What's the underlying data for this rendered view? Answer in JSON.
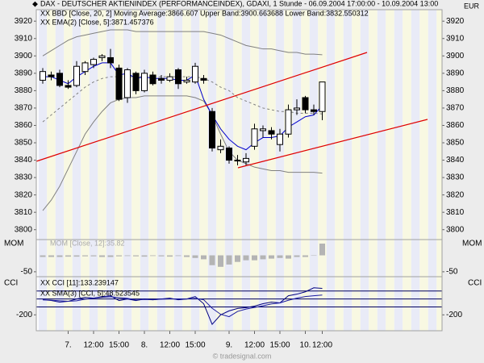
{
  "chart_data": [
    {
      "type": "candlestick",
      "title": "DAX - DEUTSCHER AKTIENINDEX (PERFORMANCEINDEX), GDAXI, 1 Stunde - 06.09.2004 17:00:00 - 10.09.2004 13:00",
      "y_label": "EUR",
      "subtitles": [
        "XX BBD [Close, 20, 2] Moving Average:3866.607 Upper Band:3900.663688 Lower Band:3832.550312",
        "XX EMA(2) [Close, 5]:3871.457376"
      ],
      "categories": [
        null,
        null,
        null,
        "7.",
        null,
        null,
        "12:00",
        null,
        null,
        "15:00",
        null,
        null,
        "8.",
        null,
        null,
        "12:00",
        null,
        null,
        "15:00",
        null,
        null,
        null,
        "9.",
        null,
        null,
        "12:00",
        null,
        null,
        "15:00",
        null,
        null,
        "10.",
        null,
        "12:00"
      ],
      "open": [
        3886,
        3889,
        3890,
        3883,
        3883,
        3891,
        3895,
        3899,
        3899,
        3893,
        3876,
        3890,
        3880,
        3889,
        3887,
        3886,
        3892,
        3885,
        3885,
        3887,
        3868,
        3846,
        3847,
        3840,
        3839,
        3848,
        3857,
        3857,
        3849,
        3855,
        3869,
        3876,
        3869,
        3868
      ],
      "high": [
        3893,
        3891,
        3892,
        3886,
        3897,
        3897,
        3899,
        3901,
        3904,
        3895,
        3893,
        3891,
        3892,
        3891,
        3889,
        3890,
        3893,
        3888,
        3896,
        3889,
        3870,
        3852,
        3848,
        3843,
        3844,
        3861,
        3860,
        3859,
        3858,
        3872,
        3875,
        3877,
        3872,
        3885
      ],
      "low": [
        3884,
        3886,
        3882,
        3881,
        3882,
        3889,
        3893,
        3897,
        3893,
        3874,
        3873,
        3878,
        3879,
        3883,
        3884,
        3885,
        3881,
        3884,
        3884,
        3884,
        3845,
        3844,
        3838,
        3837,
        3837,
        3846,
        3853,
        3852,
        3845,
        3853,
        3866,
        3867,
        3866,
        3863
      ],
      "close": [
        3891,
        3888,
        3883,
        3882,
        3894,
        3896,
        3898,
        3900,
        3896,
        3875,
        3892,
        3880,
        3890,
        3884,
        3886,
        3888,
        3884,
        3886,
        3894,
        3886,
        3847,
        3848,
        3840,
        3840,
        3841,
        3858,
        3858,
        3855,
        3855,
        3869,
        3870,
        3869,
        3868,
        3885
      ],
      "up_color": "#ffffff",
      "down_color": "#000000",
      "series": [
        {
          "color": "#808080",
          "dashed": false,
          "values": [
            3900,
            3903,
            3906,
            3909,
            3911,
            3912,
            3913,
            3914,
            3915,
            3915,
            3915,
            3914,
            3914,
            3914,
            3914,
            3914,
            3914,
            3914,
            3914,
            3914,
            3913,
            3912,
            3910,
            3908,
            3906,
            3905,
            3904,
            3904,
            3903,
            3902,
            3902,
            3901,
            3901,
            3900.66
          ]
        },
        {
          "color": "#808080",
          "dashed": true,
          "values": [
            3862,
            3866,
            3870,
            3874,
            3878,
            3882,
            3885,
            3887,
            3888,
            3888,
            3888,
            3888,
            3888,
            3888,
            3888,
            3888,
            3888,
            3888,
            3888,
            3887,
            3885,
            3882,
            3880,
            3876,
            3874,
            3872,
            3870,
            3869,
            3868,
            3868,
            3867,
            3867,
            3867,
            3866.61
          ]
        },
        {
          "color": "#808080",
          "dashed": false,
          "values": [
            3811,
            3817,
            3825,
            3835,
            3845,
            3855,
            3862,
            3868,
            3873,
            3875,
            3876,
            3876,
            3877,
            3877,
            3877,
            3877,
            3877,
            3877,
            3876,
            3874,
            3866,
            3855,
            3845,
            3840,
            3838,
            3836,
            3835,
            3834,
            3834,
            3833,
            3833,
            3833,
            3833,
            3832.55
          ]
        },
        {
          "color": "#0000cc",
          "dashed": false,
          "values": [
            3888,
            3888,
            3886,
            3884,
            3888,
            3891,
            3894,
            3896,
            3896,
            3889,
            3890,
            3887,
            3888,
            3887,
            3887,
            3887,
            3886,
            3886,
            3889,
            3875,
            3866,
            3858,
            3852,
            3848,
            3846,
            3850,
            3853,
            3853,
            3854,
            3859,
            3862,
            3865,
            3866,
            3871.46
          ]
        }
      ],
      "ylim": [
        3794.3,
        3926.6
      ],
      "yticks": [
        3800,
        3810,
        3820,
        3830,
        3840,
        3850,
        3860,
        3870,
        3880,
        3890,
        3900,
        3910,
        3920
      ]
    },
    {
      "type": "bar",
      "title": "MOM [Close, 12]:35.82",
      "y_label": "MOM",
      "values": [
        -5,
        -5,
        -5,
        -4,
        -4,
        -3,
        -3,
        -5,
        -5,
        -3,
        -2,
        -3,
        -4,
        -2,
        -3,
        -4,
        -2,
        -5,
        -8,
        -12,
        -30,
        -35,
        -28,
        -20,
        -15,
        -15,
        -12,
        -10,
        -8,
        -10,
        -5,
        -5,
        0,
        35.82
      ],
      "color": "#b4b4b4",
      "ylim": [
        -65,
        48
      ],
      "yticks": [
        -50
      ]
    },
    {
      "type": "line",
      "y_label": "CCI",
      "series": [
        {
          "name": "XX CCI [11]:133.239147",
          "color": "#000080",
          "values": [
            -10,
            -20,
            -40,
            -30,
            0,
            20,
            10,
            30,
            40,
            -20,
            0,
            -20,
            0,
            -10,
            0,
            10,
            -10,
            0,
            30,
            -60,
            -320,
            -200,
            -150,
            -120,
            -110,
            -90,
            -60,
            -40,
            -50,
            40,
            60,
            90,
            140,
            133.24
          ]
        },
        {
          "name": "XX SMA(3) [CCI, 5]:48.523545",
          "color": "#1a1aa0",
          "values": [
            -10,
            -15,
            -23,
            -30,
            -23,
            -3,
            10,
            20,
            27,
            17,
            7,
            -13,
            -7,
            -10,
            -3,
            0,
            0,
            0,
            7,
            -10,
            -117,
            -193,
            -223,
            -157,
            -127,
            -107,
            -87,
            -63,
            -50,
            -17,
            10,
            30,
            40,
            48.52
          ]
        }
      ],
      "hlines": [
        100,
        0,
        -100
      ],
      "hline_color": "#000060",
      "ylim": [
        -400,
        280
      ],
      "yticks": [
        -200
      ]
    }
  ],
  "footer": "© tradesignal.com"
}
